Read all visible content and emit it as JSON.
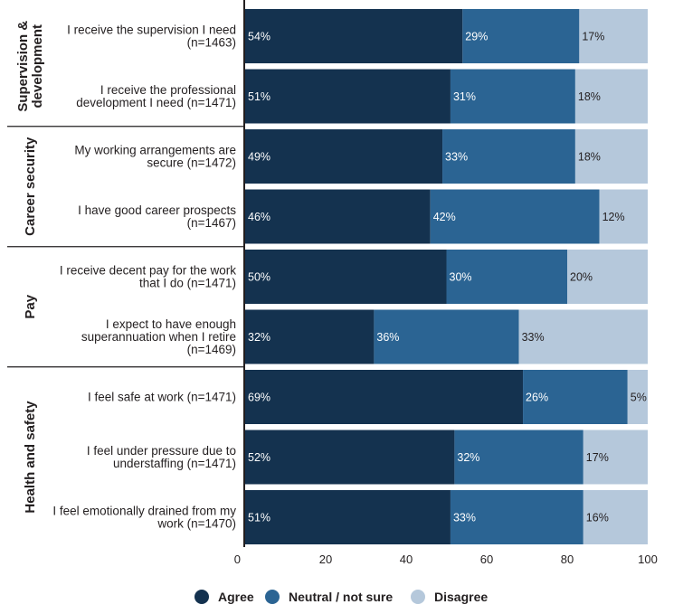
{
  "chart_data": {
    "type": "bar",
    "orientation": "horizontal",
    "stacked": true,
    "xlim": [
      0,
      100
    ],
    "x_ticks": [
      0,
      20,
      40,
      60,
      80,
      100
    ],
    "legend_position": "bottom-center",
    "series": [
      {
        "name": "Agree",
        "color": "#14324f"
      },
      {
        "name": "Neutral / not sure",
        "color": "#2b6493"
      },
      {
        "name": "Disagree",
        "color": "#b5c8db"
      }
    ],
    "groups": [
      {
        "name": "Supervision & development",
        "label_lines": [
          "Supervision &",
          "development"
        ],
        "items": [
          {
            "label_lines": [
              "I receive the supervision I need",
              "(n=1463)"
            ],
            "values": [
              54,
              29,
              17
            ]
          },
          {
            "label_lines": [
              "I receive the professional",
              "development I need (n=1471)"
            ],
            "values": [
              51,
              31,
              18
            ]
          }
        ]
      },
      {
        "name": "Career security",
        "label_lines": [
          "Career security"
        ],
        "items": [
          {
            "label_lines": [
              "My working arrangements are",
              "secure (n=1472)"
            ],
            "values": [
              49,
              33,
              18
            ]
          },
          {
            "label_lines": [
              "I have good career prospects",
              "(n=1467)"
            ],
            "values": [
              46,
              42,
              12
            ]
          }
        ]
      },
      {
        "name": "Pay",
        "label_lines": [
          "Pay"
        ],
        "items": [
          {
            "label_lines": [
              "I receive decent pay for the work",
              "that I do (n=1471)"
            ],
            "values": [
              50,
              30,
              20
            ]
          },
          {
            "label_lines": [
              "I expect to have enough",
              "superannuation when I retire",
              "(n=1469)"
            ],
            "values": [
              32,
              36,
              33
            ]
          }
        ]
      },
      {
        "name": "Health and safety",
        "label_lines": [
          "Health and safety"
        ],
        "items": [
          {
            "label_lines": [
              "I feel safe at work (n=1471)"
            ],
            "values": [
              69,
              26,
              5
            ]
          },
          {
            "label_lines": [
              "I feel under pressure due to",
              "understaffing (n=1471)"
            ],
            "values": [
              52,
              32,
              17
            ]
          },
          {
            "label_lines": [
              "I feel emotionally drained from my",
              "work (n=1470)"
            ],
            "values": [
              51,
              33,
              16
            ]
          }
        ]
      }
    ]
  }
}
